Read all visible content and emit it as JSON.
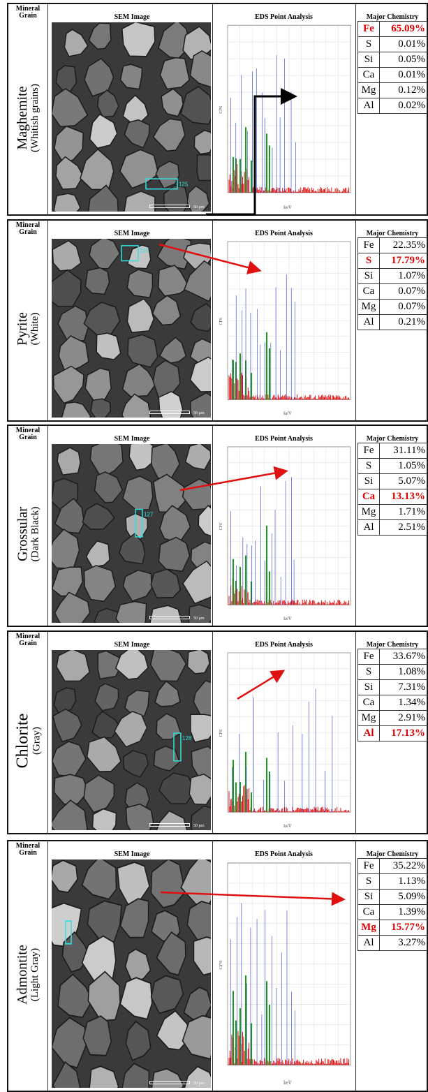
{
  "headers": {
    "grain": "Mineral Grain",
    "sem": "SEM Image",
    "eds": "EDS Point Analysis",
    "chem": "Major Chemistry"
  },
  "axis_x_label": "keV",
  "axis_y_label": "CPS",
  "scale_label": "50 µm",
  "panels": [
    {
      "name": "Maghemite",
      "sub": "(Whitish grains)",
      "spot": "125",
      "chem": [
        {
          "el": "Fe",
          "val": "65.09%",
          "highlight": true
        },
        {
          "el": "S",
          "val": "0.01%",
          "highlight": false
        },
        {
          "el": "Si",
          "val": "0.05%",
          "highlight": false
        },
        {
          "el": "Ca",
          "val": "0.01%",
          "highlight": false
        },
        {
          "el": "Mg",
          "val": "0.12%",
          "highlight": false
        },
        {
          "el": "Al",
          "val": "0.02%",
          "highlight": false
        }
      ]
    },
    {
      "name": "Pyrite",
      "sub": "(White)",
      "spot": "125",
      "chem": [
        {
          "el": "Fe",
          "val": "22.35%",
          "highlight": false
        },
        {
          "el": "S",
          "val": "17.79%",
          "highlight": true
        },
        {
          "el": "Si",
          "val": "1.07%",
          "highlight": false
        },
        {
          "el": "Ca",
          "val": "0.07%",
          "highlight": false
        },
        {
          "el": "Mg",
          "val": "0.07%",
          "highlight": false
        },
        {
          "el": "Al",
          "val": "0.21%",
          "highlight": false
        }
      ]
    },
    {
      "name": "Grossular",
      "sub": "(Dark Black)",
      "spot": "127",
      "chem": [
        {
          "el": "Fe",
          "val": "31.11%",
          "highlight": false
        },
        {
          "el": "S",
          "val": "1.05%",
          "highlight": false
        },
        {
          "el": "Si",
          "val": "5.07%",
          "highlight": false
        },
        {
          "el": "Ca",
          "val": "13.13%",
          "highlight": true
        },
        {
          "el": "Mg",
          "val": "1.71%",
          "highlight": false
        },
        {
          "el": "Al",
          "val": "2.51%",
          "highlight": false
        }
      ]
    },
    {
      "name": "Chlorite",
      "sub": "(Gray)",
      "spot": "128",
      "chem": [
        {
          "el": "Fe",
          "val": "33.67%",
          "highlight": false
        },
        {
          "el": "S",
          "val": "1.08%",
          "highlight": false
        },
        {
          "el": "Si",
          "val": "7.31%",
          "highlight": false
        },
        {
          "el": "Ca",
          "val": "1.34%",
          "highlight": false
        },
        {
          "el": "Mg",
          "val": "2.91%",
          "highlight": false
        },
        {
          "el": "Al",
          "val": "17.13%",
          "highlight": true
        }
      ]
    },
    {
      "name": "Admontite",
      "sub": "(Light Gray)",
      "spot": "",
      "chem": [
        {
          "el": "Fe",
          "val": "35.22%",
          "highlight": false
        },
        {
          "el": "S",
          "val": "1.13%",
          "highlight": false
        },
        {
          "el": "Si",
          "val": "5.09%",
          "highlight": false
        },
        {
          "el": "Ca",
          "val": "1.39%",
          "highlight": false
        },
        {
          "el": "Mg",
          "val": "15.77%",
          "highlight": true
        },
        {
          "el": "Al",
          "val": "3.27%",
          "highlight": false
        }
      ]
    }
  ]
}
